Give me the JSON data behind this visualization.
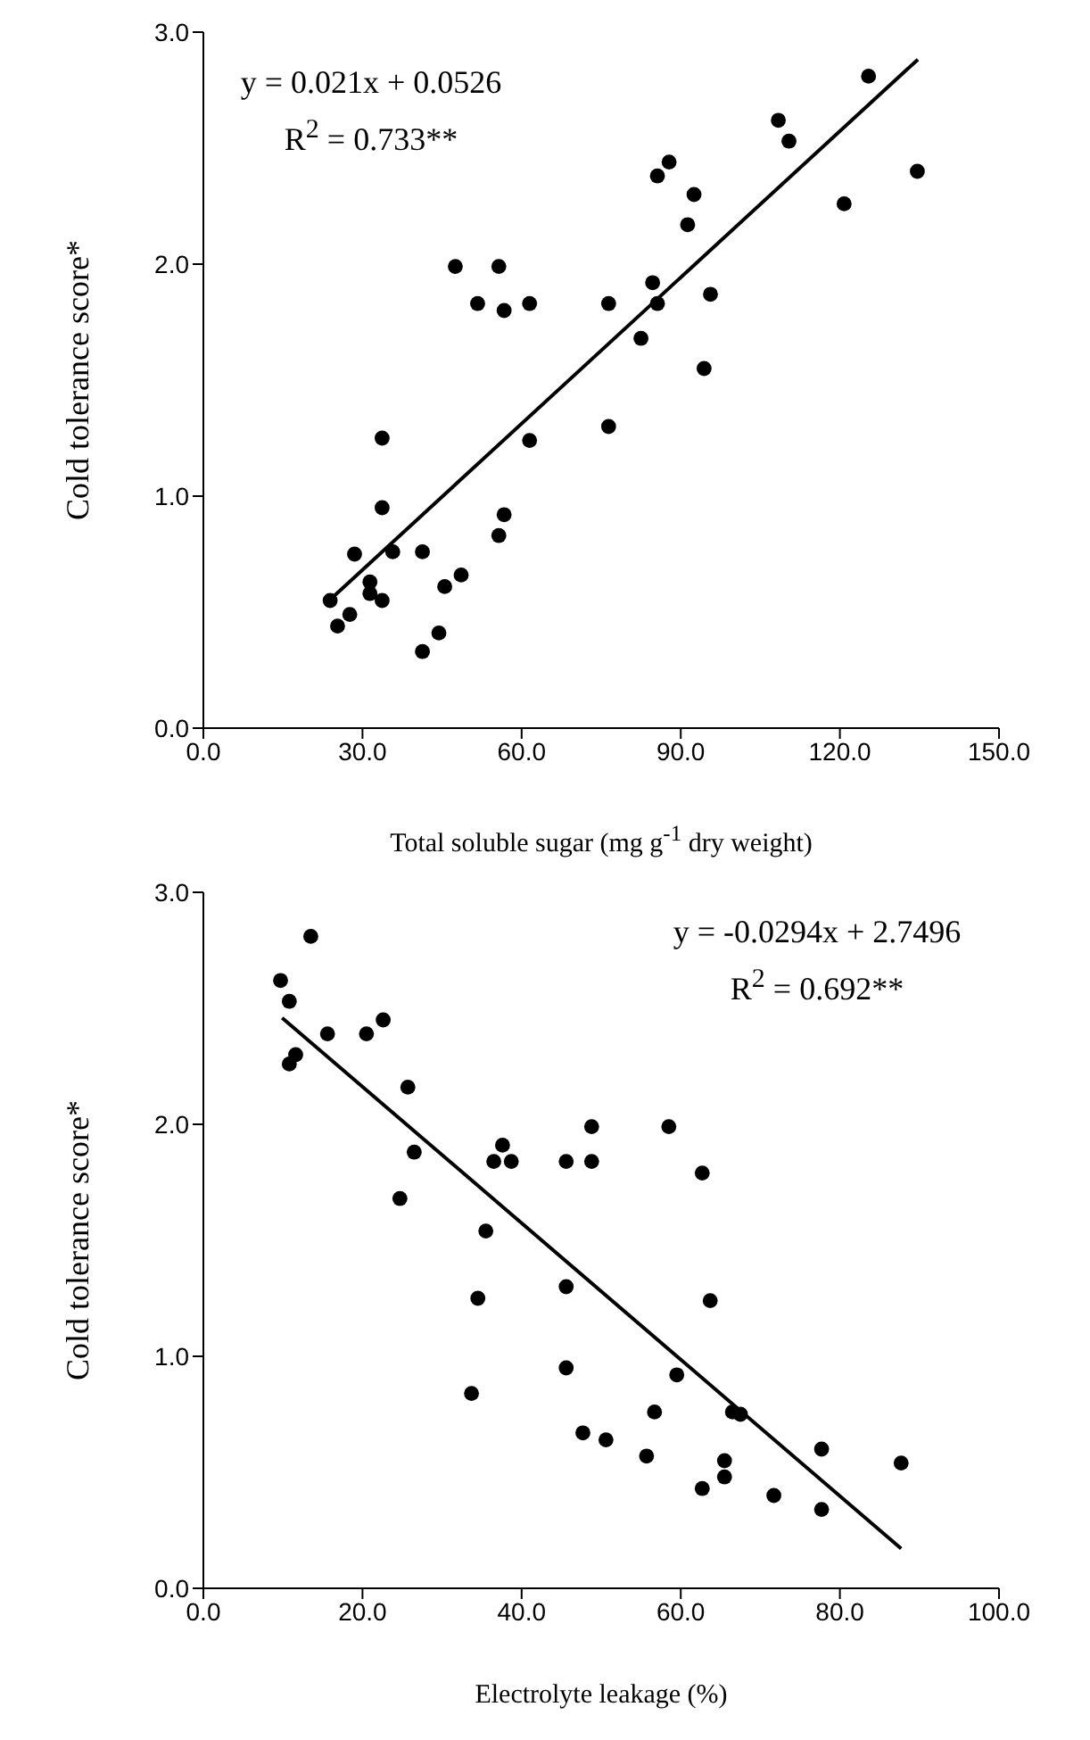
{
  "chart_data": [
    {
      "type": "scatter",
      "xlabel": "Total soluble sugar (mg g$^{-1}$ dry weight)",
      "ylabel": "Cold tolerance score*",
      "annotations": [
        "y = 0.021x + 0.0526",
        "R$^{2}$ = 0.733**"
      ],
      "xlim": [
        0,
        150
      ],
      "xticks": [
        {
          "value": 0,
          "label": "0.0"
        },
        {
          "value": 30,
          "label": "30.0"
        },
        {
          "value": 60,
          "label": "60.0"
        },
        {
          "value": 90,
          "label": "90.0"
        },
        {
          "value": 120,
          "label": "120.0"
        },
        {
          "value": 150,
          "label": "150.0"
        }
      ],
      "ylim": [
        0,
        3
      ],
      "yticks": [
        {
          "value": 0,
          "label": "0.0"
        },
        {
          "value": 1,
          "label": "1.0"
        },
        {
          "value": 2,
          "label": "2.0"
        },
        {
          "value": 3,
          "label": "3.0"
        }
      ],
      "grid": false,
      "legend": false,
      "marker": "circle",
      "series": [
        {
          "type": "scatter",
          "color": "#000000",
          "x": [
            23.9,
            25.3,
            27.6,
            28.5,
            31.4,
            31.4,
            33.7,
            33.7,
            33.7,
            35.7,
            41.3,
            41.3,
            44.4,
            45.5,
            48.6,
            47.5,
            51.7,
            55.7,
            56.7,
            61.5,
            61.5,
            55.7,
            56.7,
            76.4,
            76.4,
            82.5,
            84.7,
            85.6,
            85.6,
            87.8,
            91.3,
            92.5,
            94.4,
            95.6,
            108.4,
            110.4,
            120.8,
            125.4,
            134.6
          ],
          "values": [
            0.55,
            0.44,
            0.49,
            0.75,
            0.63,
            0.58,
            0.55,
            0.95,
            1.25,
            0.76,
            0.76,
            0.33,
            0.41,
            0.61,
            0.66,
            1.99,
            1.83,
            1.99,
            1.8,
            1.83,
            1.24,
            0.83,
            0.92,
            1.83,
            1.3,
            1.68,
            1.92,
            1.83,
            2.38,
            2.44,
            2.17,
            2.3,
            1.55,
            1.87,
            2.62,
            2.53,
            2.26,
            2.81,
            2.4
          ]
        },
        {
          "type": "line",
          "color": "#000000",
          "marker": "none",
          "x": [
            23.9,
            134.7
          ],
          "values": [
            0.554,
            2.882
          ]
        }
      ]
    },
    {
      "type": "scatter",
      "xlabel": "Electrolyte leakage (%)",
      "ylabel": "Cold tolerance score*",
      "annotations": [
        "y = -0.0294x + 2.7496",
        "R$^{2}$ = 0.692**"
      ],
      "xlim": [
        0,
        100
      ],
      "xticks": [
        {
          "value": 0,
          "label": "0.0"
        },
        {
          "value": 20,
          "label": "20.0"
        },
        {
          "value": 40,
          "label": "40.0"
        },
        {
          "value": 60,
          "label": "60.0"
        },
        {
          "value": 80,
          "label": "80.0"
        },
        {
          "value": 100,
          "label": "100.0"
        }
      ],
      "ylim": [
        0,
        3
      ],
      "yticks": [
        {
          "value": 0,
          "label": "0.0"
        },
        {
          "value": 1,
          "label": "1.0"
        },
        {
          "value": 2,
          "label": "2.0"
        },
        {
          "value": 3,
          "label": "3.0"
        }
      ],
      "grid": false,
      "legend": false,
      "marker": "circle",
      "series": [
        {
          "type": "scatter",
          "color": "#000000",
          "x": [
            9.7,
            10.8,
            10.8,
            11.6,
            13.5,
            15.6,
            20.5,
            22.6,
            25.7,
            26.5,
            24.7,
            33.7,
            34.5,
            35.5,
            36.5,
            37.6,
            38.7,
            45.6,
            45.6,
            45.6,
            47.7,
            48.8,
            48.8,
            50.6,
            55.7,
            56.7,
            58.5,
            59.5,
            62.7,
            62.7,
            63.7,
            65.5,
            65.5,
            66.5,
            67.5,
            71.7,
            77.7,
            77.7,
            87.7
          ],
          "values": [
            2.62,
            2.53,
            2.26,
            2.3,
            2.81,
            2.39,
            2.39,
            2.45,
            2.16,
            1.88,
            1.68,
            0.84,
            1.25,
            1.54,
            1.84,
            1.91,
            1.84,
            1.84,
            1.3,
            0.95,
            0.67,
            1.99,
            1.84,
            0.64,
            0.57,
            0.76,
            1.99,
            0.92,
            1.79,
            0.43,
            1.24,
            0.55,
            0.48,
            0.76,
            0.75,
            0.4,
            0.6,
            0.34,
            0.54
          ]
        },
        {
          "type": "line",
          "color": "#000000",
          "marker": "none",
          "x": [
            9.9,
            87.7
          ],
          "values": [
            2.459,
            0.171
          ]
        }
      ]
    }
  ]
}
